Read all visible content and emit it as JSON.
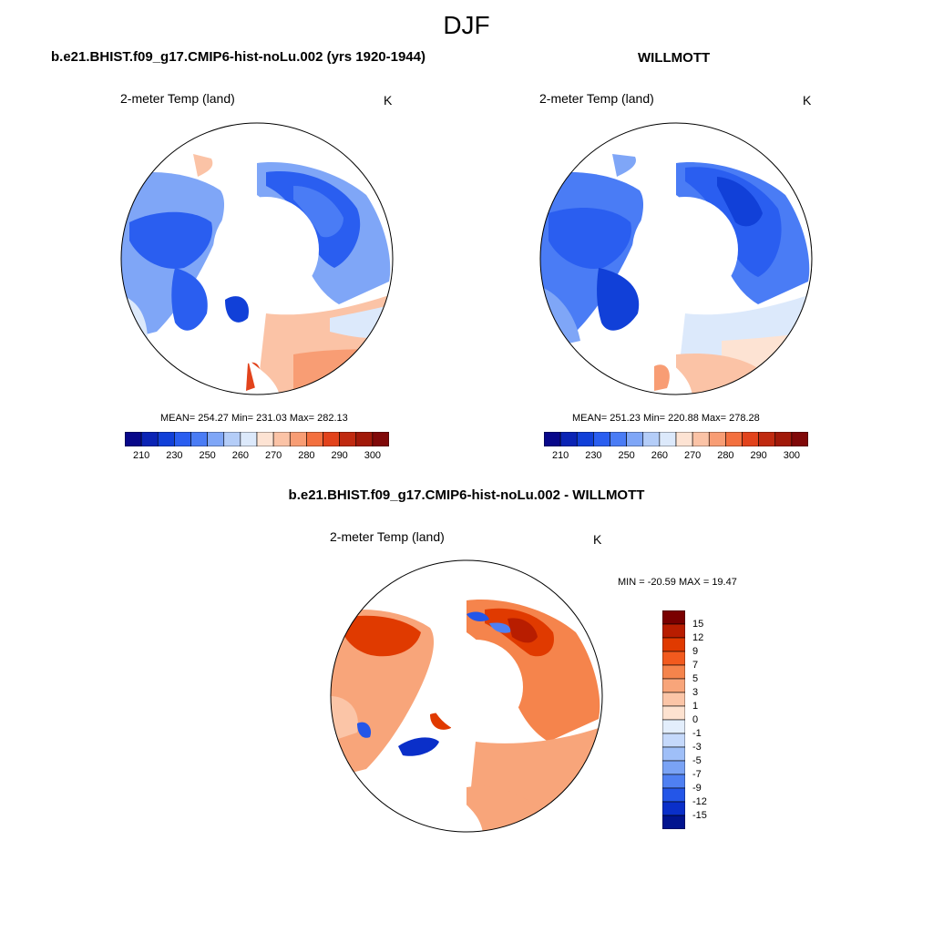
{
  "figure_title": "DJF",
  "panels": {
    "model": {
      "title": "b.e21.BHIST.f09_g17.CMIP6-hist-noLu.002 (yrs 1920-1944)",
      "variable": "2-meter Temp (land)",
      "unit": "K",
      "stats_text": "MEAN= 254.27  Min= 231.03  Max= 282.13",
      "mean": 254.27,
      "min": 231.03,
      "max": 282.13
    },
    "obs": {
      "title": "WILLMOTT",
      "variable": "2-meter Temp (land)",
      "unit": "K",
      "stats_text": "MEAN= 251.23  Min= 220.88  Max= 278.28",
      "mean": 251.23,
      "min": 220.88,
      "max": 278.28
    },
    "diff": {
      "title": "b.e21.BHIST.f09_g17.CMIP6-hist-noLu.002 - WILLMOTT",
      "variable": "2-meter Temp (land)",
      "unit": "K",
      "stats_text": "MIN = -20.59 MAX =  19.47",
      "min": -20.59,
      "max": 19.47
    }
  },
  "abs_colorbar": {
    "colors": [
      "#08088a",
      "#0b24b5",
      "#1140d8",
      "#2a5ef0",
      "#4a7cf5",
      "#7fa6f7",
      "#b4cdf8",
      "#dce9fb",
      "#fde3d3",
      "#fbc3a6",
      "#f89d74",
      "#f3703f",
      "#e2431c",
      "#c02a10",
      "#a11909",
      "#800808"
    ],
    "tick_labels": [
      "210",
      "230",
      "250",
      "260",
      "270",
      "280",
      "290",
      "300"
    ]
  },
  "diff_colorbar": {
    "colors": [
      "#7a0000",
      "#b81d00",
      "#e03a00",
      "#f25a1e",
      "#f5844c",
      "#f8a57a",
      "#fbc5a7",
      "#fde2d0",
      "#e3eefc",
      "#c5d9fb",
      "#9fbff8",
      "#7aa3f5",
      "#4f80f2",
      "#2456e8",
      "#0a2fc9",
      "#01148f"
    ],
    "tick_labels": [
      "15",
      "12",
      "9",
      "7",
      "5",
      "3",
      "1",
      "0",
      "-1",
      "-3",
      "-5",
      "-7",
      "-9",
      "-12",
      "-15"
    ]
  }
}
